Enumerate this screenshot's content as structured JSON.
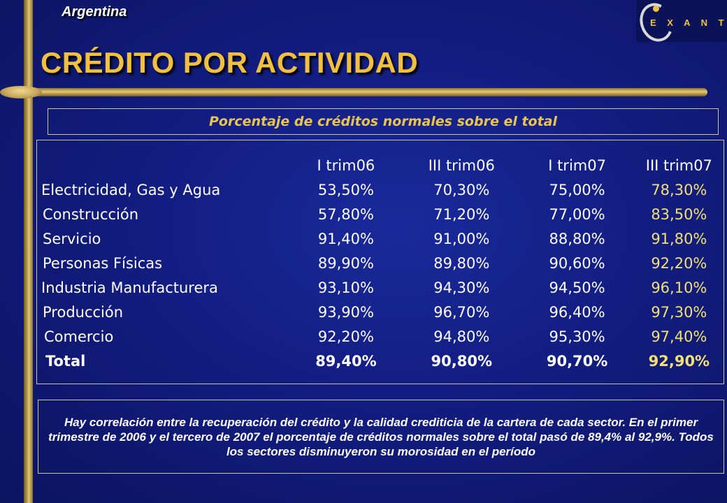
{
  "header": {
    "country": "Argentina",
    "title": "CRÉDITO POR ACTIVIDAD",
    "logo_text": "E X A N T E"
  },
  "subtitle": "Porcentaje de créditos normales sobre el total",
  "table": {
    "columns": [
      "I trim06",
      "III trim06",
      "I trim07",
      "III trim07"
    ],
    "rows": [
      {
        "label": "Electricidad, Gas y Agua",
        "values": [
          "53,50%",
          "70,30%",
          "75,00%",
          "78,30%"
        ]
      },
      {
        "label": "Construcción",
        "values": [
          "57,80%",
          "71,20%",
          "77,00%",
          "83,50%"
        ]
      },
      {
        "label": "Servicio",
        "values": [
          "91,40%",
          "91,00%",
          "88,80%",
          "91,80%"
        ]
      },
      {
        "label": "Personas Físicas",
        "values": [
          "89,90%",
          "89,80%",
          "90,60%",
          "92,20%"
        ]
      },
      {
        "label": "Industria Manufacturera",
        "values": [
          "93,10%",
          "94,30%",
          "94,50%",
          "96,10%"
        ]
      },
      {
        "label": "Producción",
        "values": [
          "93,90%",
          "96,70%",
          "96,40%",
          "97,30%"
        ]
      },
      {
        "label": "Comercio",
        "values": [
          "92,20%",
          "94,80%",
          "95,30%",
          "97,40%"
        ]
      },
      {
        "label": "Total",
        "values": [
          "89,40%",
          "90,80%",
          "90,70%",
          "92,90%"
        ]
      }
    ]
  },
  "note": "Hay correlación entre la recuperación del crédito y la calidad crediticia de la cartera de cada sector. En el primer trimestre de 2006 y el tercero de 2007 el porcentaje de créditos normales sobre el total pasó de 89,4% al 92,9%. Todos los sectores disminuyeron su morosidad en el período",
  "colors": {
    "background": "#121d80",
    "title": "#f2c040",
    "highlight_column": "#f2e070",
    "gold_bar": "#c9a95a"
  }
}
